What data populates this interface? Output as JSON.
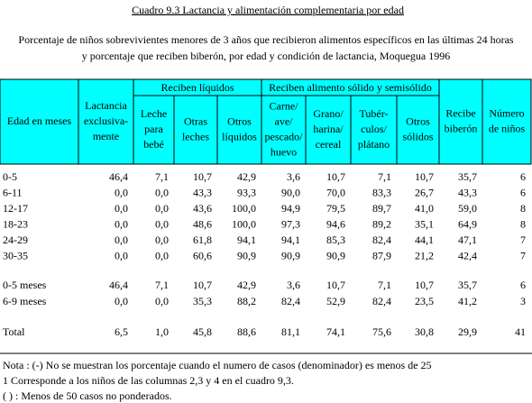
{
  "title": "Cuadro 9.3 Lactancia y alimentación complementaria por edad",
  "subtitle": [
    "Porcentaje de niños sobrevivientes menores de 3 años que recibieron alimentos específicos en las últimas 24 horas",
    "y porcentaje que reciben biberón, por edad y condición de lactancia, Moquegua 1996"
  ],
  "table": {
    "groups": [
      "Reciben líquidos",
      "Reciben alimento sólido y semisólido"
    ],
    "columns": [
      [
        "Edad en meses"
      ],
      [
        "Lactancia",
        "exclusiva-",
        "mente"
      ],
      [
        "Leche",
        "para",
        "bebé"
      ],
      [
        "Otras",
        "leches"
      ],
      [
        "Otros",
        "líquidos"
      ],
      [
        "Carne/",
        "ave/",
        "pescado/",
        "huevo"
      ],
      [
        "Grano/",
        "harina/",
        "cereal"
      ],
      [
        "Tubér-",
        "culos/",
        "plátano"
      ],
      [
        "Otros",
        "sólidos"
      ],
      [
        "Recibe",
        "biberón"
      ],
      [
        "Número",
        "de niños"
      ]
    ],
    "rows": [
      [
        "0-5",
        "46,4",
        "7,1",
        "10,7",
        "42,9",
        "3,6",
        "10,7",
        "7,1",
        "10,7",
        "35,7",
        "6"
      ],
      [
        "6-11",
        "0,0",
        "0,0",
        "43,3",
        "93,3",
        "90,0",
        "70,0",
        "83,3",
        "26,7",
        "43,3",
        "6"
      ],
      [
        "12-17",
        "0,0",
        "0,0",
        "43,6",
        "100,0",
        "94,9",
        "79,5",
        "89,7",
        "41,0",
        "59,0",
        "8"
      ],
      [
        "18-23",
        "0,0",
        "0,0",
        "48,6",
        "100,0",
        "97,3",
        "94,6",
        "89,2",
        "35,1",
        "64,9",
        "8"
      ],
      [
        "24-29",
        "0,0",
        "0,0",
        "61,8",
        "94,1",
        "94,1",
        "85,3",
        "82,4",
        "44,1",
        "47,1",
        "7"
      ],
      [
        "30-35",
        "0,0",
        "0,0",
        "60,6",
        "90,9",
        "90,9",
        "90,9",
        "87,9",
        "21,2",
        "42,4",
        "7"
      ],
      [
        "0-5 meses",
        "46,4",
        "7,1",
        "10,7",
        "42,9",
        "3,6",
        "10,7",
        "7,1",
        "10,7",
        "35,7",
        "6"
      ],
      [
        "6-9 meses",
        "0,0",
        "0,0",
        "35,3",
        "88,2",
        "82,4",
        "52,9",
        "82,4",
        "23,5",
        "41,2",
        "3"
      ],
      [
        "Total",
        "6,5",
        "1,0",
        "45,8",
        "88,6",
        "81,1",
        "74,1",
        "75,6",
        "30,8",
        "29,9",
        "41"
      ]
    ]
  },
  "notes": [
    "Nota : (-) No se muestran los porcentaje cuando el numero de casos (denominador) es menos de 25",
    "1 Corresponde a los niños de las columnas 2,3 y 4 en el cuadro 9,3.",
    "( ) : Menos de 50 casos no ponderados."
  ]
}
